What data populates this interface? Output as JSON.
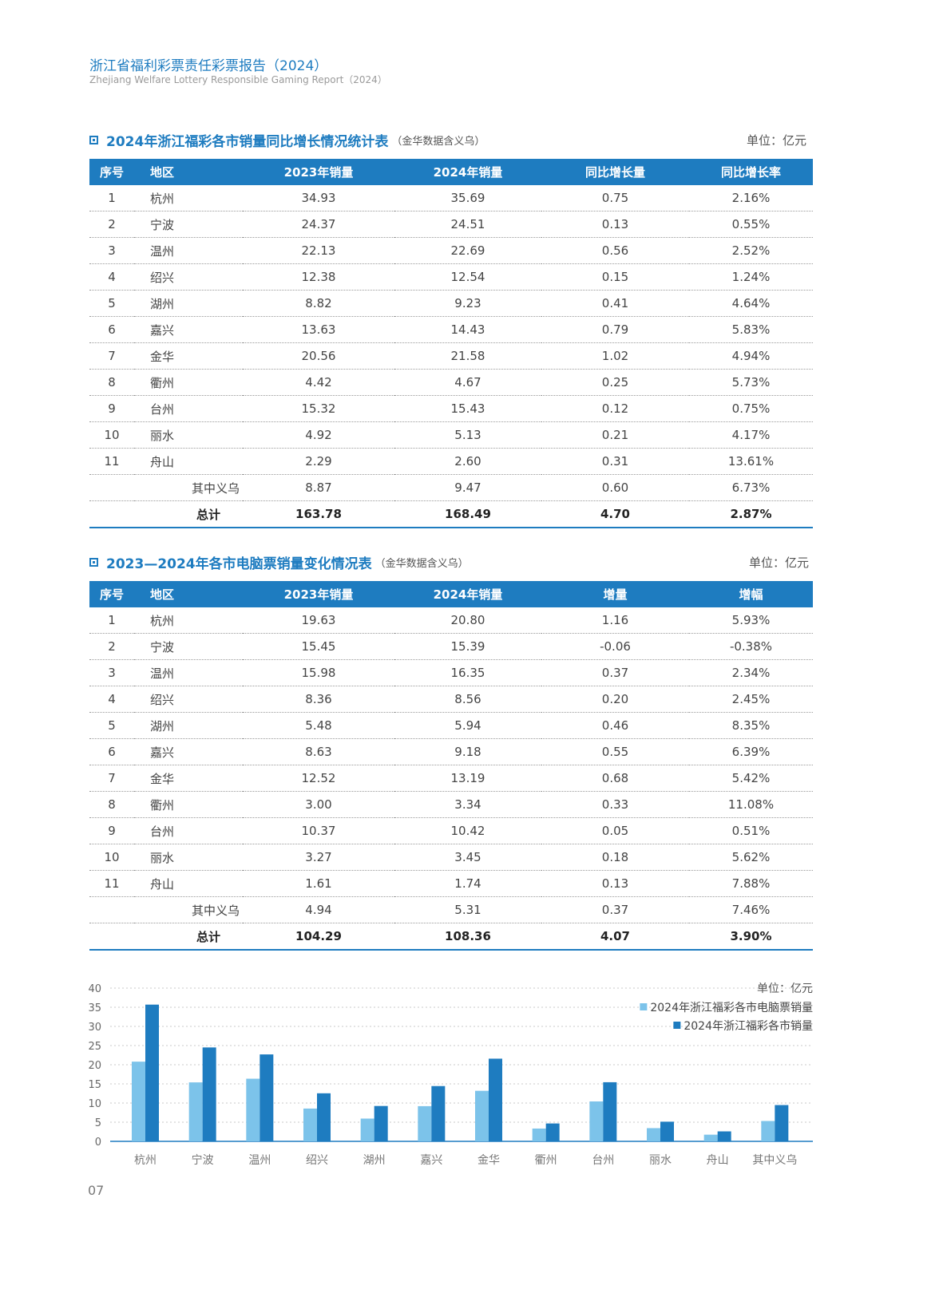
{
  "header": {
    "title_cn": "浙江省福利彩票责任彩票报告（2024）",
    "title_en": "Zhejiang Welfare Lottery Responsible Gaming Report（2024）"
  },
  "table1": {
    "title": "2024年浙江福彩各市销量同比增长情况统计表",
    "note": "（金华数据含义乌）",
    "unit": "单位：亿元",
    "headers": [
      "序号",
      "地区",
      "2023年销量",
      "2024年销量",
      "同比增长量",
      "同比增长率"
    ],
    "rows": [
      [
        "1",
        "杭州",
        "34.93",
        "35.69",
        "0.75",
        "2.16%"
      ],
      [
        "2",
        "宁波",
        "24.37",
        "24.51",
        "0.13",
        "0.55%"
      ],
      [
        "3",
        "温州",
        "22.13",
        "22.69",
        "0.56",
        "2.52%"
      ],
      [
        "4",
        "绍兴",
        "12.38",
        "12.54",
        "0.15",
        "1.24%"
      ],
      [
        "5",
        "湖州",
        "8.82",
        "9.23",
        "0.41",
        "4.64%"
      ],
      [
        "6",
        "嘉兴",
        "13.63",
        "14.43",
        "0.79",
        "5.83%"
      ],
      [
        "7",
        "金华",
        "20.56",
        "21.58",
        "1.02",
        "4.94%"
      ],
      [
        "8",
        "衢州",
        "4.42",
        "4.67",
        "0.25",
        "5.73%"
      ],
      [
        "9",
        "台州",
        "15.32",
        "15.43",
        "0.12",
        "0.75%"
      ],
      [
        "10",
        "丽水",
        "4.92",
        "5.13",
        "0.21",
        "4.17%"
      ],
      [
        "11",
        "舟山",
        "2.29",
        "2.60",
        "0.31",
        "13.61%"
      ]
    ],
    "sub_row": [
      "其中义乌",
      "8.87",
      "9.47",
      "0.60",
      "6.73%"
    ],
    "total_row": [
      "总计",
      "163.78",
      "168.49",
      "4.70",
      "2.87%"
    ]
  },
  "table2": {
    "title": "2023—2024年各市电脑票销量变化情况表",
    "note": "（金华数据含义乌）",
    "unit": "单位：亿元",
    "headers": [
      "序号",
      "地区",
      "2023年销量",
      "2024年销量",
      "增量",
      "增幅"
    ],
    "rows": [
      [
        "1",
        "杭州",
        "19.63",
        "20.80",
        "1.16",
        "5.93%"
      ],
      [
        "2",
        "宁波",
        "15.45",
        "15.39",
        "-0.06",
        "-0.38%"
      ],
      [
        "3",
        "温州",
        "15.98",
        "16.35",
        "0.37",
        "2.34%"
      ],
      [
        "4",
        "绍兴",
        "8.36",
        "8.56",
        "0.20",
        "2.45%"
      ],
      [
        "5",
        "湖州",
        "5.48",
        "5.94",
        "0.46",
        "8.35%"
      ],
      [
        "6",
        "嘉兴",
        "8.63",
        "9.18",
        "0.55",
        "6.39%"
      ],
      [
        "7",
        "金华",
        "12.52",
        "13.19",
        "0.68",
        "5.42%"
      ],
      [
        "8",
        "衢州",
        "3.00",
        "3.34",
        "0.33",
        "11.08%"
      ],
      [
        "9",
        "台州",
        "10.37",
        "10.42",
        "0.05",
        "0.51%"
      ],
      [
        "10",
        "丽水",
        "3.27",
        "3.45",
        "0.18",
        "5.62%"
      ],
      [
        "11",
        "舟山",
        "1.61",
        "1.74",
        "0.13",
        "7.88%"
      ]
    ],
    "sub_row": [
      "其中义乌",
      "4.94",
      "5.31",
      "0.37",
      "7.46%"
    ],
    "total_row": [
      "总计",
      "104.29",
      "108.36",
      "4.07",
      "3.90%"
    ]
  },
  "chart_data": {
    "type": "bar",
    "unit": "单位：亿元",
    "categories": [
      "杭州",
      "宁波",
      "温州",
      "绍兴",
      "湖州",
      "嘉兴",
      "金华",
      "衢州",
      "台州",
      "丽水",
      "舟山",
      "其中义乌"
    ],
    "series": [
      {
        "name": "2024年浙江福彩各市电脑票销量",
        "color": "#7cc3ea",
        "values": [
          20.8,
          15.39,
          16.35,
          8.56,
          5.94,
          9.18,
          13.19,
          3.34,
          10.42,
          3.45,
          1.74,
          5.31
        ]
      },
      {
        "name": "2024年浙江福彩各市销量",
        "color": "#1e7cc0",
        "values": [
          35.69,
          24.51,
          22.69,
          12.54,
          9.23,
          14.43,
          21.58,
          4.67,
          15.43,
          5.13,
          2.6,
          9.47
        ]
      }
    ],
    "ylim": [
      0,
      40
    ],
    "yticks": [
      0,
      5,
      10,
      15,
      20,
      25,
      30,
      35,
      40
    ],
    "grid": true,
    "legend": "top-right"
  },
  "page_number": "07"
}
